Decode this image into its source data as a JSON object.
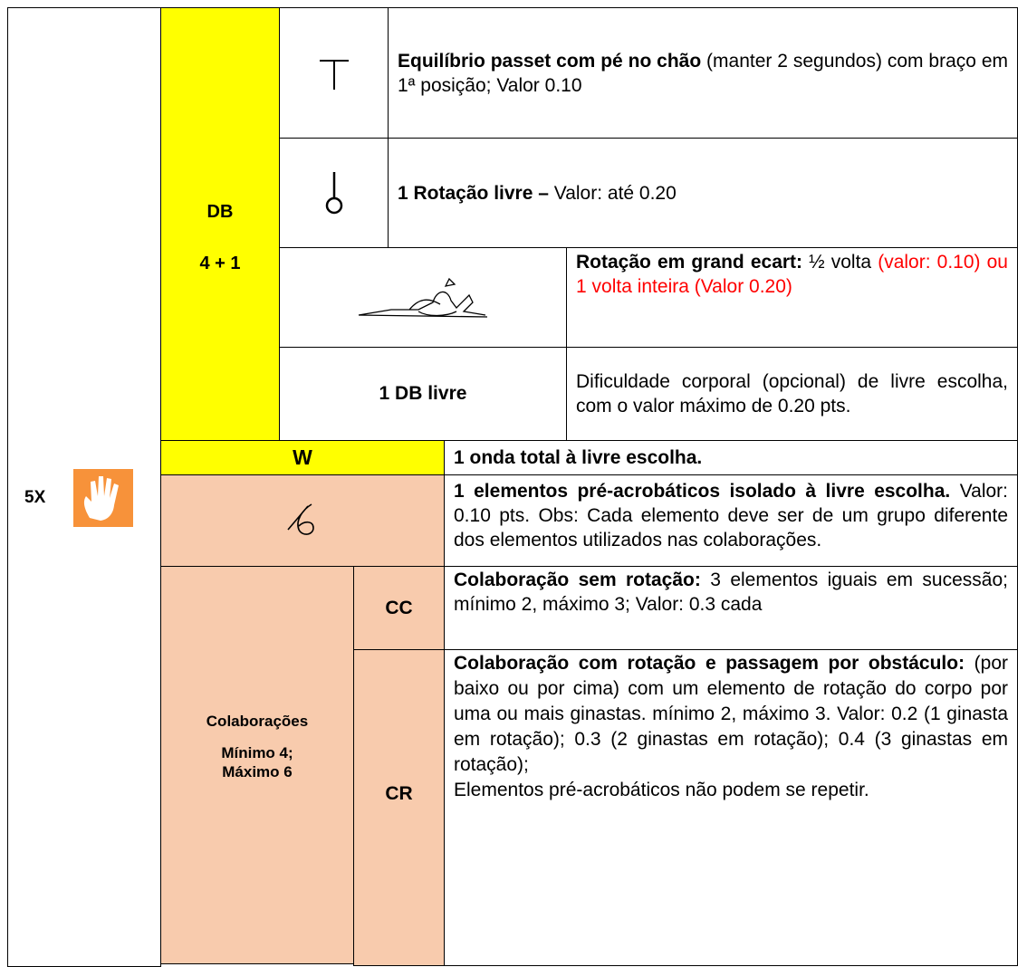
{
  "side": {
    "multiplier": "5X"
  },
  "db": {
    "label": "DB",
    "count": "4 + 1"
  },
  "elements": [
    {
      "text": [
        [
          {
            "t": "Equilíbrio passet com pé no chão",
            "style": "bold"
          },
          {
            "t": " (manter 2 segundos) com braço em 1ª posição; Valor 0.10",
            "style": "normal"
          }
        ]
      ]
    },
    {
      "text": [
        [
          {
            "t": "1 Rotação livre –",
            "style": "bold"
          },
          {
            "t": " Valor: até 0.20",
            "style": "normal"
          }
        ]
      ]
    },
    {
      "text": [
        [
          {
            "t": "Rotação em grand ecart:",
            "style": "bold"
          },
          {
            "t": " ½ volta ",
            "style": "normal"
          },
          {
            "t": "(valor: 0.10) ou 1 volta inteira (Valor 0.20)",
            "style": "red"
          }
        ]
      ]
    },
    {
      "label": "1 DB livre",
      "text": [
        [
          {
            "t": "Dificuldade corporal (opcional) de livre escolha, com o valor máximo de 0.20 pts.",
            "style": "normal"
          }
        ]
      ]
    }
  ],
  "wave": {
    "label": "W",
    "text": "1 onda total à livre escolha."
  },
  "pre_acro": {
    "text": [
      [
        {
          "t": "1 elementos pré-acrobáticos isolado à livre escolha.",
          "style": "bold"
        },
        {
          "t": " Valor: 0.10 pts. Obs: Cada elemento deve ser de um grupo diferente dos elementos utilizados nas colaborações.",
          "style": "normal"
        }
      ]
    ]
  },
  "collab": {
    "label": "Colaborações",
    "limits": "Mínimo 4; Máximo 6",
    "rows": [
      {
        "label": "CC",
        "text": [
          [
            {
              "t": "Colaboração sem rotação:",
              "style": "bold"
            },
            {
              "t": " 3 elementos iguais em sucessão; mínimo 2, máximo 3; Valor: 0.3 cada",
              "style": "normal"
            }
          ]
        ]
      },
      {
        "label": "CR",
        "text": [
          [
            {
              "t": "Colaboração com rotação e passagem por obstáculo:",
              "style": "bold"
            },
            {
              "t": " (por baixo ou por cima) com um elemento de rotação do corpo por uma ou mais ginastas. mínimo 2, máximo 3.  Valor: 0.2 (1 ginasta em rotação); 0.3 (2 ginastas em rotação); 0.4 (3 ginastas em rotação);",
              "style": "normal"
            }
          ],
          [
            {
              "t": "Elementos pré-acrobáticos não podem se repetir.",
              "style": "normal"
            }
          ]
        ]
      }
    ]
  }
}
